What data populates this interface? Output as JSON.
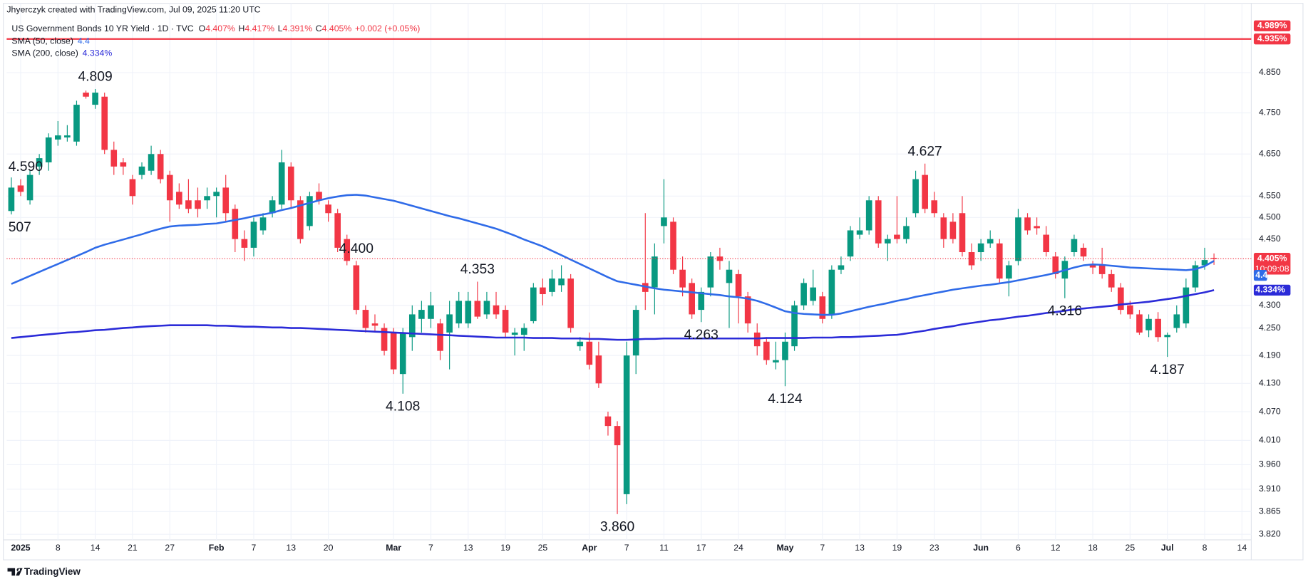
{
  "caption": "Jhyerczyk created with TradingView.com, Jul 09, 2025 11:20 UTC",
  "footer": "TradingView",
  "chart_data": {
    "type": "candlestick",
    "title": "US Government Bonds 10 YR Yield · 1D · TVC",
    "ohlc_header": [
      {
        "key": "O",
        "label": "4.407%"
      },
      {
        "key": "H",
        "label": "4.417%"
      },
      {
        "key": "L",
        "label": "4.391%"
      },
      {
        "key": "C",
        "label": "4.405%"
      }
    ],
    "change_label": "+0.002 (+0.05%)",
    "open": [
      4.515,
      4.575,
      4.54,
      4.62,
      4.63,
      4.685,
      4.69,
      4.68,
      4.8,
      4.77,
      4.79,
      4.66,
      4.63,
      4.59,
      4.6,
      4.61,
      4.65,
      4.6,
      4.56,
      4.54,
      4.54,
      4.54,
      4.55,
      4.57,
      4.52,
      4.45,
      4.43,
      4.47,
      4.51,
      4.53,
      4.62,
      4.54,
      4.48,
      4.56,
      4.53,
      4.51,
      4.45,
      4.39,
      4.29,
      4.26,
      4.25,
      4.24,
      4.15,
      4.23,
      4.27,
      4.27,
      4.26,
      4.24,
      4.26,
      4.26,
      4.31,
      4.28,
      4.3,
      4.29,
      4.235,
      4.235,
      4.265,
      4.34,
      4.33,
      4.345,
      4.36,
      4.21,
      4.22,
      4.19,
      4.06,
      4.04,
      3.9,
      4.19,
      4.35,
      4.34,
      4.48,
      4.49,
      4.38,
      4.35,
      4.29,
      4.34,
      4.41,
      4.35,
      4.37,
      4.32,
      4.24,
      4.22,
      4.175,
      4.18,
      4.21,
      4.3,
      4.31,
      4.32,
      4.28,
      4.38,
      4.41,
      4.46,
      4.47,
      4.54,
      4.44,
      4.46,
      4.45,
      4.51,
      4.6,
      4.54,
      4.5,
      4.49,
      4.51,
      4.42,
      4.42,
      4.44,
      4.44,
      4.36,
      4.4,
      4.5,
      4.48,
      4.46,
      4.41,
      4.36,
      4.42,
      4.43,
      4.39,
      4.39,
      4.37,
      4.34,
      4.3,
      4.28,
      4.245,
      4.27,
      4.23,
      4.25,
      4.26,
      4.34,
      4.39,
      4.407
    ],
    "high": [
      4.594,
      4.59,
      4.61,
      4.65,
      4.7,
      4.73,
      4.72,
      4.78,
      4.805,
      4.809,
      4.8,
      4.68,
      4.64,
      4.6,
      4.63,
      4.67,
      4.66,
      4.61,
      4.58,
      4.59,
      4.57,
      4.57,
      4.57,
      4.6,
      4.53,
      4.47,
      4.5,
      4.51,
      4.55,
      4.66,
      4.63,
      4.55,
      4.56,
      4.58,
      4.54,
      4.52,
      4.46,
      4.4,
      4.3,
      4.28,
      4.26,
      4.25,
      4.25,
      4.3,
      4.31,
      4.33,
      4.27,
      4.31,
      4.33,
      4.33,
      4.353,
      4.33,
      4.33,
      4.3,
      4.25,
      4.26,
      4.35,
      4.36,
      4.38,
      4.39,
      4.37,
      4.23,
      4.24,
      4.22,
      4.07,
      4.05,
      4.22,
      4.3,
      4.51,
      4.44,
      4.59,
      4.5,
      4.41,
      4.36,
      4.34,
      4.42,
      4.43,
      4.4,
      4.38,
      4.33,
      4.26,
      4.23,
      4.22,
      4.24,
      4.31,
      4.36,
      4.38,
      4.33,
      4.39,
      4.41,
      4.48,
      4.5,
      4.55,
      4.55,
      4.46,
      4.55,
      4.5,
      4.61,
      4.627,
      4.56,
      4.51,
      4.51,
      4.55,
      4.44,
      4.45,
      4.47,
      4.45,
      4.4,
      4.52,
      4.51,
      4.5,
      4.48,
      4.42,
      4.41,
      4.46,
      4.44,
      4.4,
      4.43,
      4.38,
      4.35,
      4.31,
      4.29,
      4.28,
      4.285,
      4.24,
      4.3,
      4.36,
      4.4,
      4.43,
      4.417
    ],
    "low": [
      4.507,
      4.55,
      4.53,
      4.6,
      4.61,
      4.67,
      4.68,
      4.67,
      4.785,
      4.76,
      4.65,
      4.6,
      4.6,
      4.53,
      4.59,
      4.6,
      4.58,
      4.49,
      4.52,
      4.51,
      4.5,
      4.52,
      4.5,
      4.49,
      4.42,
      4.4,
      4.41,
      4.46,
      4.5,
      4.52,
      4.52,
      4.44,
      4.47,
      4.53,
      4.49,
      4.42,
      4.39,
      4.28,
      4.24,
      4.24,
      4.19,
      4.15,
      4.108,
      4.2,
      4.24,
      4.25,
      4.18,
      4.16,
      4.25,
      4.25,
      4.27,
      4.27,
      4.27,
      4.23,
      4.19,
      4.2,
      4.26,
      4.3,
      4.32,
      4.33,
      4.24,
      4.2,
      4.16,
      4.12,
      4.02,
      3.86,
      3.88,
      4.15,
      4.29,
      4.28,
      4.44,
      4.37,
      4.32,
      4.27,
      4.263,
      4.32,
      4.38,
      4.25,
      4.26,
      4.24,
      4.19,
      4.17,
      4.16,
      4.124,
      4.2,
      4.29,
      4.3,
      4.26,
      4.27,
      4.37,
      4.4,
      4.45,
      4.46,
      4.43,
      4.4,
      4.44,
      4.44,
      4.5,
      4.51,
      4.5,
      4.43,
      4.44,
      4.41,
      4.38,
      4.4,
      4.43,
      4.35,
      4.32,
      4.39,
      4.46,
      4.46,
      4.41,
      4.36,
      4.316,
      4.41,
      4.4,
      4.37,
      4.36,
      4.33,
      4.28,
      4.27,
      4.235,
      4.23,
      4.22,
      4.187,
      4.24,
      4.25,
      4.33,
      4.38,
      4.391
    ],
    "close": [
      4.57,
      4.56,
      4.6,
      4.64,
      4.69,
      4.695,
      4.695,
      4.77,
      4.79,
      4.8,
      4.66,
      4.62,
      4.62,
      4.55,
      4.62,
      4.65,
      4.59,
      4.54,
      4.53,
      4.52,
      4.52,
      4.55,
      4.56,
      4.51,
      4.45,
      4.43,
      4.49,
      4.5,
      4.54,
      4.63,
      4.54,
      4.45,
      4.55,
      4.54,
      4.51,
      4.43,
      4.4,
      4.29,
      4.25,
      4.255,
      4.2,
      4.16,
      4.24,
      4.28,
      4.29,
      4.3,
      4.2,
      4.28,
      4.31,
      4.31,
      4.275,
      4.31,
      4.28,
      4.24,
      4.24,
      4.25,
      4.34,
      4.325,
      4.36,
      4.36,
      4.25,
      4.22,
      4.17,
      4.13,
      4.04,
      4.0,
      4.19,
      4.29,
      4.33,
      4.41,
      4.5,
      4.38,
      4.34,
      4.28,
      4.33,
      4.41,
      4.4,
      4.38,
      4.32,
      4.26,
      4.21,
      4.18,
      4.18,
      4.22,
      4.3,
      4.35,
      4.34,
      4.27,
      4.38,
      4.39,
      4.47,
      4.47,
      4.54,
      4.44,
      4.45,
      4.45,
      4.48,
      4.59,
      4.52,
      4.51,
      4.45,
      4.45,
      4.42,
      4.39,
      4.44,
      4.45,
      4.36,
      4.39,
      4.5,
      4.47,
      4.475,
      4.42,
      4.37,
      4.4,
      4.45,
      4.41,
      4.385,
      4.37,
      4.34,
      4.29,
      4.28,
      4.24,
      4.27,
      4.23,
      4.235,
      4.28,
      4.34,
      4.39,
      4.402,
      4.405
    ],
    "up_color": "#089981",
    "down_color": "#f23645",
    "series": [
      {
        "name": "SMA (50, close)",
        "value_label": "4.4",
        "color": "#2f6be8",
        "values": [
          4.348,
          4.357,
          4.366,
          4.375,
          4.384,
          4.393,
          4.402,
          4.411,
          4.42,
          4.43,
          4.437,
          4.443,
          4.449,
          4.455,
          4.461,
          4.468,
          4.474,
          4.479,
          4.481,
          4.482,
          4.483,
          4.485,
          4.486,
          4.49,
          4.494,
          4.498,
          4.503,
          4.507,
          4.511,
          4.517,
          4.522,
          4.528,
          4.534,
          4.54,
          4.545,
          4.549,
          4.552,
          4.553,
          4.551,
          4.547,
          4.543,
          4.539,
          4.533,
          4.527,
          4.521,
          4.515,
          4.509,
          4.503,
          4.498,
          4.492,
          4.486,
          4.48,
          4.474,
          4.466,
          4.458,
          4.449,
          4.441,
          4.433,
          4.423,
          4.413,
          4.403,
          4.393,
          4.383,
          4.373,
          4.363,
          4.354,
          4.35,
          4.346,
          4.342,
          4.338,
          4.335,
          4.333,
          4.331,
          4.329,
          4.327,
          4.325,
          4.323,
          4.32,
          4.318,
          4.315,
          4.31,
          4.303,
          4.295,
          4.287,
          4.283,
          4.281,
          4.28,
          4.279,
          4.279,
          4.282,
          4.287,
          4.292,
          4.297,
          4.301,
          4.305,
          4.31,
          4.314,
          4.319,
          4.323,
          4.327,
          4.331,
          4.335,
          4.338,
          4.341,
          4.344,
          4.346,
          4.349,
          4.352,
          4.356,
          4.36,
          4.364,
          4.368,
          4.373,
          4.379,
          4.385,
          4.39,
          4.392,
          4.391,
          4.389,
          4.387,
          4.385,
          4.384,
          4.383,
          4.382,
          4.381,
          4.38,
          4.379,
          4.381,
          4.388,
          4.4
        ]
      },
      {
        "name": "SMA (200, close)",
        "value_label": "4.334%",
        "color": "#2b2bd8",
        "values": [
          4.228,
          4.23,
          4.232,
          4.234,
          4.236,
          4.238,
          4.24,
          4.241,
          4.243,
          4.245,
          4.246,
          4.248,
          4.25,
          4.251,
          4.253,
          4.254,
          4.255,
          4.256,
          4.256,
          4.256,
          4.256,
          4.256,
          4.255,
          4.255,
          4.254,
          4.253,
          4.253,
          4.252,
          4.251,
          4.251,
          4.25,
          4.25,
          4.249,
          4.248,
          4.247,
          4.246,
          4.245,
          4.244,
          4.243,
          4.242,
          4.241,
          4.24,
          4.239,
          4.238,
          4.237,
          4.236,
          4.235,
          4.234,
          4.233,
          4.232,
          4.231,
          4.23,
          4.229,
          4.229,
          4.229,
          4.229,
          4.228,
          4.228,
          4.228,
          4.227,
          4.227,
          4.227,
          4.226,
          4.226,
          4.225,
          4.224,
          4.224,
          4.225,
          4.226,
          4.226,
          4.227,
          4.227,
          4.227,
          4.227,
          4.227,
          4.227,
          4.227,
          4.227,
          4.227,
          4.227,
          4.227,
          4.228,
          4.228,
          4.228,
          4.228,
          4.228,
          4.229,
          4.229,
          4.229,
          4.23,
          4.23,
          4.231,
          4.232,
          4.233,
          4.234,
          4.235,
          4.238,
          4.241,
          4.244,
          4.248,
          4.251,
          4.254,
          4.258,
          4.261,
          4.264,
          4.267,
          4.269,
          4.272,
          4.275,
          4.277,
          4.28,
          4.283,
          4.285,
          4.288,
          4.291,
          4.293,
          4.295,
          4.297,
          4.299,
          4.302,
          4.304,
          4.306,
          4.308,
          4.311,
          4.314,
          4.317,
          4.321,
          4.325,
          4.329,
          4.334
        ]
      }
    ],
    "log_scale": true,
    "ylim": [
      3.809,
      4.988
    ],
    "yticks": [
      {
        "value": 4.85,
        "label": "4.850"
      },
      {
        "value": 4.75,
        "label": "4.750"
      },
      {
        "value": 4.65,
        "label": "4.650"
      },
      {
        "value": 4.55,
        "label": "4.550"
      },
      {
        "value": 4.5,
        "label": "4.500"
      },
      {
        "value": 4.45,
        "label": "4.450"
      },
      {
        "value": 4.3,
        "label": "4.300"
      },
      {
        "value": 4.25,
        "label": "4.250"
      },
      {
        "value": 4.19,
        "label": "4.190"
      },
      {
        "value": 4.13,
        "label": "4.130"
      },
      {
        "value": 4.07,
        "label": "4.070"
      },
      {
        "value": 4.01,
        "label": "4.010"
      },
      {
        "value": 3.96,
        "label": "3.960"
      },
      {
        "value": 3.91,
        "label": "3.910"
      },
      {
        "value": 3.865,
        "label": "3.865"
      },
      {
        "value": 3.82,
        "label": "3.820"
      }
    ],
    "xlim": [
      -0.5,
      133
    ],
    "xticks": [
      {
        "value": 1,
        "label": "2025"
      },
      {
        "value": 5,
        "label": "8"
      },
      {
        "value": 9,
        "label": "14"
      },
      {
        "value": 13,
        "label": "21"
      },
      {
        "value": 17,
        "label": "27"
      },
      {
        "value": 22,
        "label": "Feb"
      },
      {
        "value": 26,
        "label": "7"
      },
      {
        "value": 30,
        "label": "13"
      },
      {
        "value": 34,
        "label": "20"
      },
      {
        "value": 41,
        "label": "Mar"
      },
      {
        "value": 45,
        "label": "7"
      },
      {
        "value": 49,
        "label": "13"
      },
      {
        "value": 53,
        "label": "19"
      },
      {
        "value": 57,
        "label": "25"
      },
      {
        "value": 62,
        "label": "Apr"
      },
      {
        "value": 66,
        "label": "7"
      },
      {
        "value": 70,
        "label": "11"
      },
      {
        "value": 74,
        "label": "17"
      },
      {
        "value": 78,
        "label": "24"
      },
      {
        "value": 83,
        "label": "May"
      },
      {
        "value": 87,
        "label": "7"
      },
      {
        "value": 91,
        "label": "13"
      },
      {
        "value": 95,
        "label": "19"
      },
      {
        "value": 99,
        "label": "23"
      },
      {
        "value": 104,
        "label": "Jun"
      },
      {
        "value": 108,
        "label": "6"
      },
      {
        "value": 112,
        "label": "12"
      },
      {
        "value": 116,
        "label": "18"
      },
      {
        "value": 120,
        "label": "25"
      },
      {
        "value": 124,
        "label": "Jul"
      },
      {
        "value": 128,
        "label": "8"
      },
      {
        "value": 132,
        "label": "14"
      }
    ],
    "grid": true,
    "annotations": [
      {
        "label": "507",
        "value": 4.507
      },
      {
        "label": "4.809",
        "value": 4.809
      },
      {
        "label": "4.400",
        "value": 4.4
      },
      {
        "label": "4.108",
        "value": 4.108
      },
      {
        "label": "4.353",
        "value": 4.353
      },
      {
        "label": "3.860",
        "value": 3.86
      },
      {
        "label": "4.590",
        "value": 4.59
      },
      {
        "label": "4.263",
        "value": 4.263
      },
      {
        "label": "4.124",
        "value": 4.124
      },
      {
        "label": "4.627",
        "value": 4.627
      },
      {
        "label": "4.316",
        "value": 4.316
      },
      {
        "label": "4.187",
        "value": 4.187
      }
    ],
    "price_lines": [
      {
        "label": "4.935%",
        "value": 4.935,
        "color": "#f23645"
      }
    ],
    "axis_labels": [
      {
        "label": "4.989%",
        "value": 4.989,
        "color": "#f23645"
      }
    ],
    "last_price": {
      "label": "4.405%",
      "countdown": "10:09:08",
      "color": "#f23645"
    }
  }
}
